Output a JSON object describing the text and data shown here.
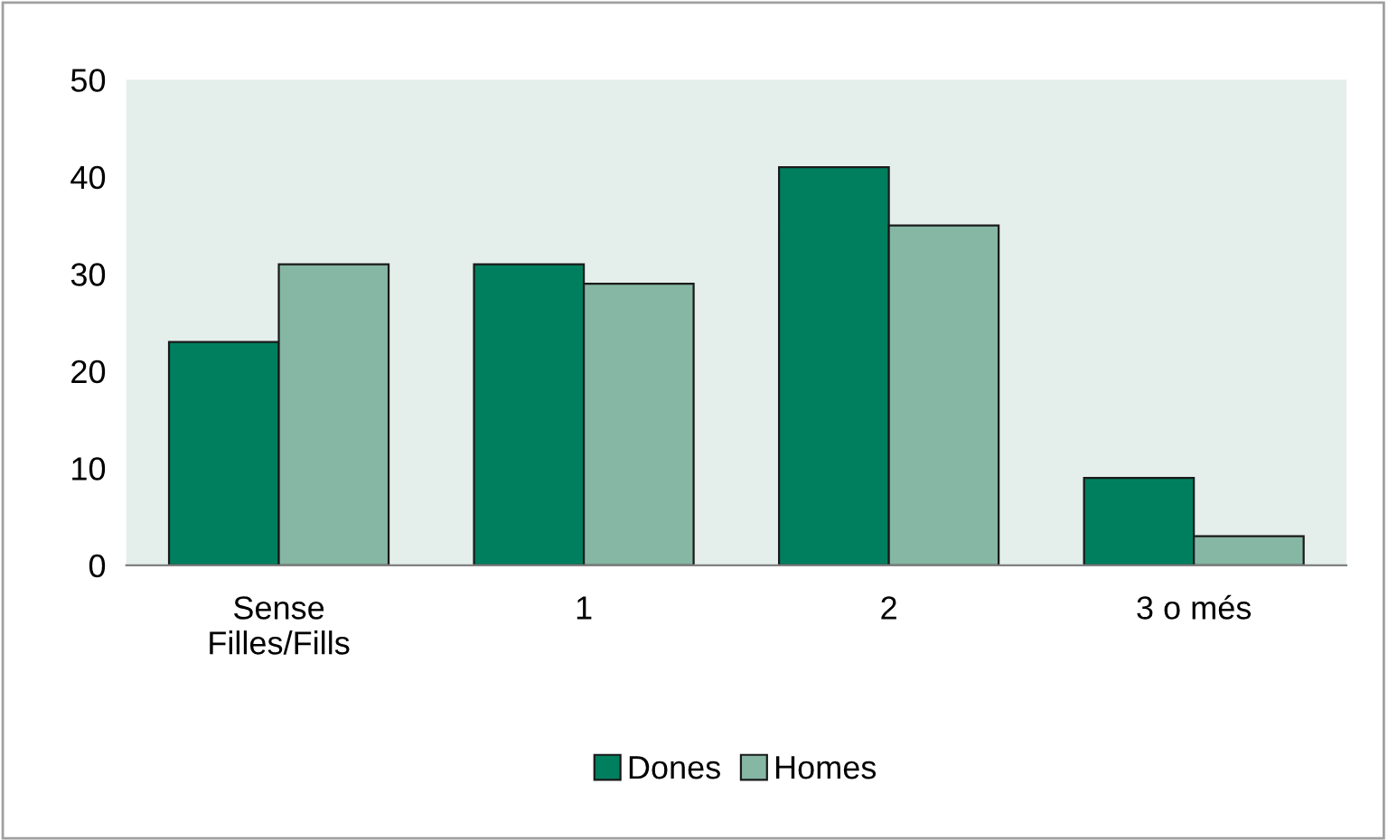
{
  "chart_data": {
    "type": "bar",
    "categories": [
      "Sense\nFilles/Fills",
      "1",
      "2",
      "3 o més"
    ],
    "series": [
      {
        "name": "Dones",
        "color": "#007f5f",
        "values": [
          23,
          31,
          41,
          9
        ]
      },
      {
        "name": "Homes",
        "color": "#86b7a4",
        "values": [
          31,
          29,
          35,
          3
        ]
      }
    ],
    "ylim": [
      0,
      50
    ],
    "yticks": [
      0,
      10,
      20,
      30,
      40,
      50
    ],
    "grid": false,
    "legend": "bottom"
  }
}
